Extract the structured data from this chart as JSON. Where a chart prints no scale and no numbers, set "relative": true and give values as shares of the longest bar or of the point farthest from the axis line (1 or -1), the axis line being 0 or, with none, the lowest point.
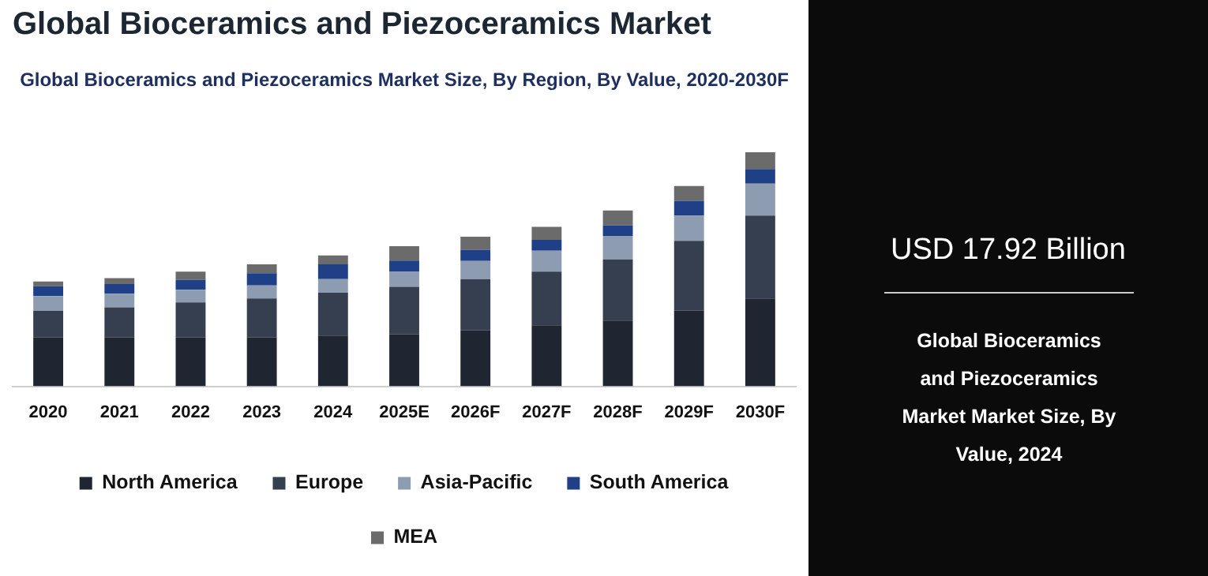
{
  "chart_data": {
    "type": "bar",
    "title": "Global Bioceramics and Piezoceramics Market",
    "subtitle": "Global Bioceramics and Piezoceramics Market Size, By Region, By Value, 2020-2030F",
    "categories": [
      "2020",
      "2021",
      "2022",
      "2023",
      "2024",
      "2025E",
      "2026F",
      "2027F",
      "2028F",
      "2029F",
      "2030F"
    ],
    "stacked": true,
    "relative": true,
    "grid": false,
    "legend": "bottom",
    "series": [
      {
        "name": "North America",
        "color": "#1f2631",
        "values": [
          0.208,
          0.208,
          0.208,
          0.208,
          0.217,
          0.223,
          0.239,
          0.261,
          0.281,
          0.323,
          0.375
        ]
      },
      {
        "name": "Europe",
        "color": "#363f4f",
        "values": [
          0.114,
          0.129,
          0.15,
          0.167,
          0.183,
          0.202,
          0.219,
          0.229,
          0.261,
          0.298,
          0.354
        ]
      },
      {
        "name": "Asia-Pacific",
        "color": "#8d9cb0",
        "values": [
          0.063,
          0.058,
          0.054,
          0.056,
          0.058,
          0.064,
          0.077,
          0.089,
          0.1,
          0.108,
          0.136
        ]
      },
      {
        "name": "South America",
        "color": "#1f3f86",
        "values": [
          0.042,
          0.042,
          0.042,
          0.052,
          0.063,
          0.048,
          0.048,
          0.046,
          0.046,
          0.063,
          0.063
        ]
      },
      {
        "name": "MEA",
        "color": "#6b6b6b",
        "values": [
          0.021,
          0.025,
          0.036,
          0.038,
          0.038,
          0.061,
          0.056,
          0.056,
          0.063,
          0.063,
          0.072
        ]
      }
    ],
    "annotations": [
      "USD 17.92 Billion",
      "Global Bioceramics and Piezoceramics Market  Market Size, By Value, 2024"
    ]
  }
}
